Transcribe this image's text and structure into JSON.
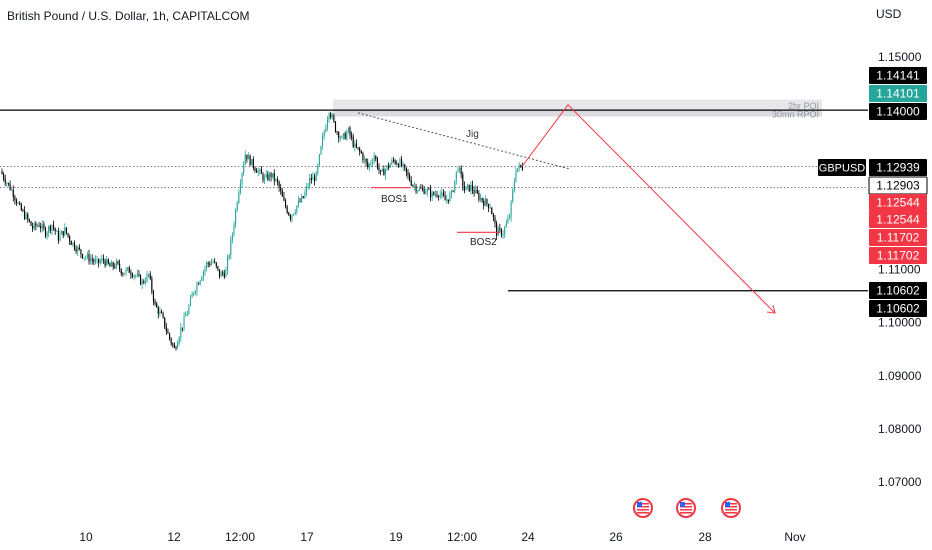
{
  "header": {
    "title": "British Pound / U.S. Dollar, 1h, CAPITALCOM"
  },
  "currency_label": "USD",
  "colors": {
    "up": "#26a69a",
    "down": "#000000",
    "projection": "#f23645",
    "zone": "#e0e0e0",
    "price_tag_bg": "#000000",
    "red_tag_bg": "#f23645",
    "teal_tag_bg": "#26a69a"
  },
  "chart_data": {
    "type": "candlestick",
    "symbol": "GBPUSD",
    "x_ticks": [
      "10",
      "12",
      "12:00",
      "17",
      "19",
      "12:00",
      "24",
      "26",
      "28",
      "Nov"
    ],
    "y_ticks": [
      "1.15000",
      "1.11000",
      "1.10000",
      "1.09000",
      "1.08000",
      "1.07000"
    ],
    "ylim": [
      1.063,
      1.155
    ],
    "close_path": [
      1.1285,
      1.1264,
      1.1244,
      1.1215,
      1.1198,
      1.1178,
      1.1185,
      1.117,
      1.1185,
      1.116,
      1.1174,
      1.1152,
      1.1138,
      1.1125,
      1.112,
      1.1112,
      1.1118,
      1.1105,
      1.1109,
      1.1095,
      1.1098,
      1.1089,
      1.1075,
      1.109,
      1.1032,
      1.1012,
      1.0978,
      1.095,
      1.0988,
      1.102,
      1.106,
      1.1085,
      1.111,
      1.1115,
      1.109,
      1.1095,
      1.1168,
      1.1253,
      1.1318,
      1.13,
      1.1285,
      1.127,
      1.1278,
      1.1262,
      1.1225,
      1.12,
      1.122,
      1.1235,
      1.1268,
      1.1275,
      1.1345,
      1.1402,
      1.1365,
      1.1345,
      1.136,
      1.133,
      1.1318,
      1.1292,
      1.1315,
      1.1278,
      1.1292,
      1.1305,
      1.13,
      1.128,
      1.126,
      1.125,
      1.125,
      1.124,
      1.1245,
      1.123,
      1.124,
      1.1295,
      1.125,
      1.1255,
      1.124,
      1.1228,
      1.122,
      1.117,
      1.117,
      1.12,
      1.129,
      1.1293
    ],
    "horizontal_levels": [
      {
        "price": 1.14,
        "label": "1.14000"
      },
      {
        "price": 1.106,
        "label": "1.10602"
      }
    ],
    "dotted_levels": [
      1.12939,
      1.12544
    ],
    "zones": [
      {
        "label": "2hr POI",
        "top": 1.142,
        "bottom": 1.14
      },
      {
        "label": "30mn RPOI",
        "top": 1.14,
        "bottom": 1.1388
      }
    ],
    "bos": [
      {
        "label": "BOS1",
        "price": 1.1254
      },
      {
        "label": "BOS2",
        "price": 1.117
      }
    ],
    "trendline_label": "Jig",
    "projection": {
      "points": [
        1.12939,
        1.141,
        1.1018
      ]
    },
    "price_tags": [
      {
        "value": "1.14141",
        "style": "black"
      },
      {
        "value": "1.14101",
        "style": "teal"
      },
      {
        "value": "1.14000",
        "style": "black"
      },
      {
        "value": "1.12939",
        "style": "black",
        "symbol": "GBPUSD"
      },
      {
        "value": "1.12903",
        "style": "black-outline"
      },
      {
        "value": "1.12544",
        "style": "red"
      },
      {
        "value": "1.12544",
        "style": "red"
      },
      {
        "value": "1.11702",
        "style": "red"
      },
      {
        "value": "1.11702",
        "style": "red"
      },
      {
        "value": "1.10602",
        "style": "black"
      },
      {
        "value": "1.10602",
        "style": "black"
      }
    ],
    "event_icons": [
      "us-flag-icon",
      "us-flag-icon",
      "us-flag-icon"
    ]
  }
}
